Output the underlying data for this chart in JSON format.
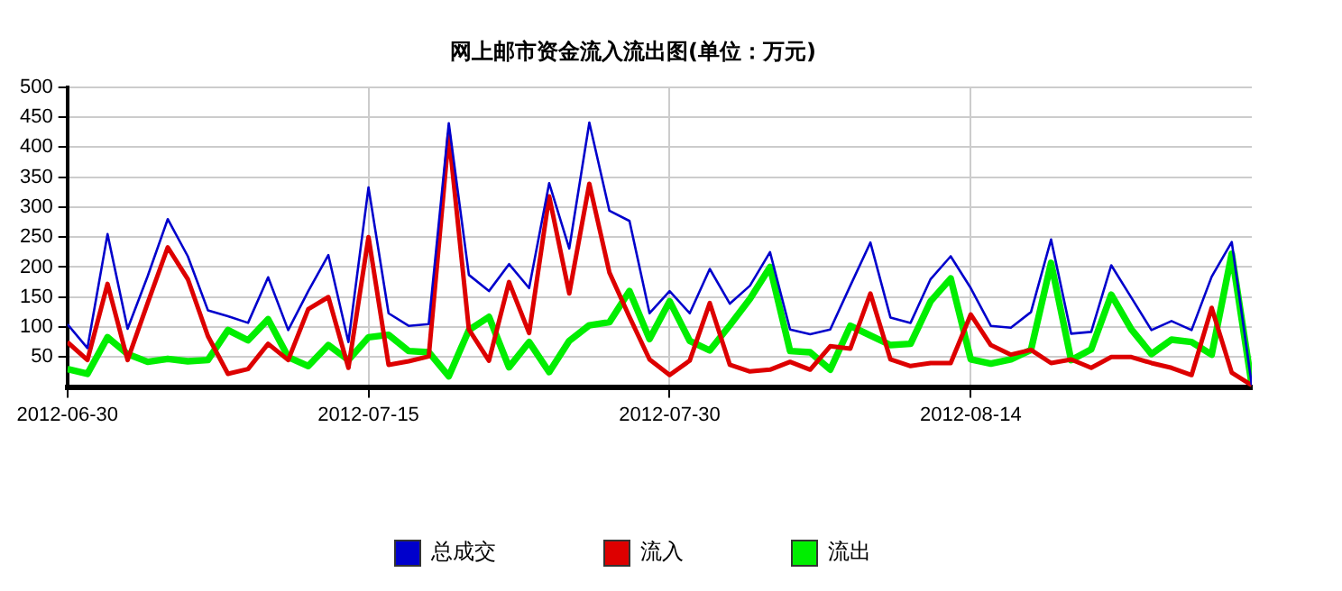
{
  "chart_data": {
    "type": "line",
    "title": "网上邮市资金流入流出图(单位：万元)",
    "x": [
      "2012-06-30",
      "2012-07-01",
      "2012-07-02",
      "2012-07-03",
      "2012-07-04",
      "2012-07-05",
      "2012-07-06",
      "2012-07-07",
      "2012-07-08",
      "2012-07-09",
      "2012-07-10",
      "2012-07-11",
      "2012-07-12",
      "2012-07-13",
      "2012-07-14",
      "2012-07-15",
      "2012-07-16",
      "2012-07-17",
      "2012-07-18",
      "2012-07-19",
      "2012-07-20",
      "2012-07-21",
      "2012-07-22",
      "2012-07-23",
      "2012-07-24",
      "2012-07-25",
      "2012-07-26",
      "2012-07-27",
      "2012-07-28",
      "2012-07-29",
      "2012-07-30",
      "2012-07-31",
      "2012-08-01",
      "2012-08-02",
      "2012-08-03",
      "2012-08-04",
      "2012-08-05",
      "2012-08-06",
      "2012-08-07",
      "2012-08-08",
      "2012-08-09",
      "2012-08-10",
      "2012-08-11",
      "2012-08-12",
      "2012-08-13",
      "2012-08-14",
      "2012-08-15",
      "2012-08-16",
      "2012-08-17",
      "2012-08-18",
      "2012-08-19",
      "2012-08-20",
      "2012-08-21",
      "2012-08-22",
      "2012-08-23",
      "2012-08-24",
      "2012-08-25",
      "2012-08-26",
      "2012-08-27",
      "2012-08-28"
    ],
    "series": [
      {
        "name": "总成交",
        "color": "#0000cc",
        "values": [
          105,
          65,
          255,
          97,
          185,
          280,
          218,
          128,
          118,
          107,
          183,
          95,
          160,
          220,
          75,
          333,
          123,
          102,
          105,
          440,
          187,
          160,
          205,
          165,
          340,
          231,
          441,
          294,
          277,
          123,
          160,
          123,
          197,
          139,
          169,
          225,
          96,
          88,
          96,
          169,
          241,
          116,
          107,
          180,
          218,
          165,
          102,
          99,
          125,
          246,
          89,
          92,
          203,
          149,
          95,
          110,
          95,
          184,
          242,
          3
        ]
      },
      {
        "name": "流入",
        "color": "#dd0000",
        "values": [
          75,
          45,
          172,
          45,
          140,
          233,
          180,
          85,
          22,
          30,
          72,
          45,
          130,
          150,
          32,
          250,
          37,
          43,
          51,
          421,
          96,
          44,
          175,
          90,
          318,
          156,
          339,
          191,
          117,
          46,
          20,
          44,
          140,
          37,
          26,
          29,
          42,
          29,
          68,
          64,
          156,
          46,
          35,
          40,
          40,
          121,
          70,
          54,
          62,
          40,
          46,
          32,
          50,
          50,
          40,
          32,
          20,
          132,
          24,
          3
        ]
      },
      {
        "name": "流出",
        "color": "#00ee00",
        "values": [
          30,
          22,
          83,
          55,
          42,
          47,
          43,
          45,
          95,
          78,
          113,
          50,
          35,
          70,
          45,
          83,
          87,
          60,
          58,
          18,
          95,
          117,
          33,
          75,
          25,
          77,
          103,
          108,
          160,
          80,
          143,
          77,
          61,
          103,
          147,
          200,
          60,
          58,
          29,
          102,
          86,
          70,
          72,
          143,
          181,
          46,
          39,
          46,
          62,
          207,
          45,
          63,
          154,
          96,
          55,
          79,
          75,
          54,
          222,
          3
        ]
      }
    ],
    "xlim": [
      "2012-06-30",
      "2012-08-28"
    ],
    "xticks": [
      {
        "value": "2012-06-30",
        "label": "2012-06-30"
      },
      {
        "value": "2012-07-15",
        "label": "2012-07-15"
      },
      {
        "value": "2012-07-30",
        "label": "2012-07-30"
      },
      {
        "value": "2012-08-14",
        "label": "2012-08-14"
      }
    ],
    "ylim": [
      0,
      500
    ],
    "yticks": [
      50,
      100,
      150,
      200,
      250,
      300,
      350,
      400,
      450,
      500
    ],
    "grid": true,
    "legend": "bottom",
    "marker": "none",
    "line_style": "solid"
  }
}
